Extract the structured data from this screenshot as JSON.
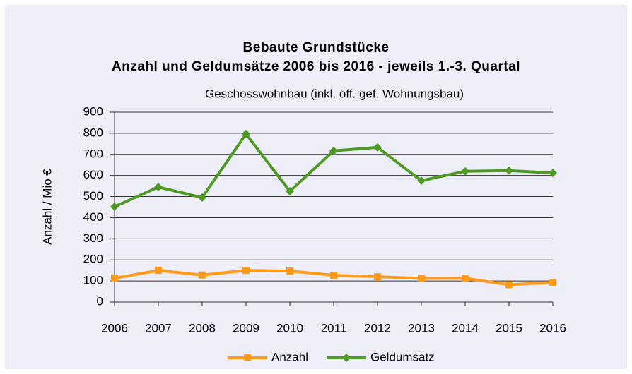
{
  "chart_data": {
    "type": "line",
    "title": [
      "Bebaute Grundstücke",
      "Anzahl und Geldumsätze 2006 bis 2016 - jeweils 1.-3. Quartal"
    ],
    "subtitle": "Geschosswohnbau (inkl. öff. gef. Wohnungsbau)",
    "y_label": "Anzahl / Mio €",
    "categories": [
      "2006",
      "2007",
      "2008",
      "2009",
      "2010",
      "2011",
      "2012",
      "2013",
      "2014",
      "2015",
      "2016"
    ],
    "series": [
      {
        "name": "Anzahl",
        "color": "#ff9a1a",
        "marker": "square",
        "values": [
          113,
          150,
          128,
          150,
          147,
          127,
          120,
          112,
          113,
          82,
          93
        ]
      },
      {
        "name": "Geldumsatz",
        "color": "#4f9a25",
        "marker": "diamond",
        "values": [
          452,
          545,
          495,
          797,
          525,
          717,
          733,
          575,
          620,
          623,
          612
        ]
      }
    ],
    "ylim": [
      0,
      900
    ],
    "yticks": [
      0,
      100,
      200,
      300,
      400,
      500,
      600,
      700,
      800,
      900
    ],
    "grid": true,
    "legend": "bottom"
  }
}
